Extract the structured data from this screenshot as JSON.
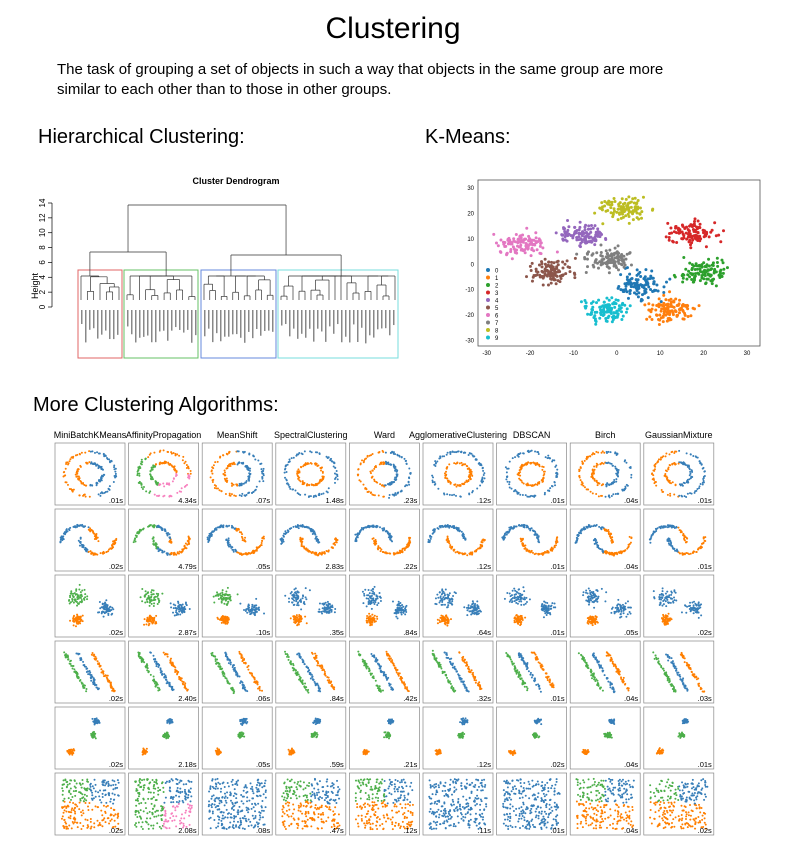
{
  "header": {
    "title": "Clustering",
    "description_lines": [
      "The task of grouping a set of objects in such a way that objects in the same group are more",
      "similar to each other than to those in other groups."
    ]
  },
  "hierarchical": {
    "heading": "Hierarchical Clustering:",
    "plot_title": "Cluster Dendrogram",
    "y_label": "Height",
    "y_ticks": [
      "0",
      "2",
      "4",
      "6",
      "8",
      "10",
      "12",
      "14"
    ]
  },
  "kmeans": {
    "heading": "K-Means:",
    "legend": [
      "0",
      "1",
      "2",
      "3",
      "4",
      "5",
      "6",
      "7",
      "8",
      "9"
    ],
    "x_ticks": [
      "-30",
      "-20",
      "-10",
      "0",
      "10",
      "20",
      "30"
    ],
    "y_ticks": [
      "30",
      "20",
      "10",
      "0",
      "-10",
      "-20",
      "-30"
    ]
  },
  "more": {
    "heading": "More Clustering Algorithms:",
    "algorithms": [
      "MiniBatchKMeans",
      "AffinityPropagation",
      "MeanShift",
      "SpectralClustering",
      "Ward",
      "AgglomerativeClustering",
      "DBSCAN",
      "Birch",
      "GaussianMixture"
    ],
    "timings": [
      [
        ".01s",
        "4.34s",
        ".07s",
        "1.48s",
        ".23s",
        ".12s",
        ".01s",
        ".04s",
        ".01s"
      ],
      [
        ".02s",
        "4.79s",
        ".05s",
        "2.83s",
        ".22s",
        ".12s",
        ".01s",
        ".04s",
        ".01s"
      ],
      [
        ".02s",
        "2.87s",
        ".10s",
        ".35s",
        ".84s",
        ".64s",
        ".01s",
        ".05s",
        ".02s"
      ],
      [
        ".02s",
        "2.40s",
        ".06s",
        ".84s",
        ".42s",
        ".32s",
        ".01s",
        ".04s",
        ".03s"
      ],
      [
        ".02s",
        "2.18s",
        ".05s",
        ".59s",
        ".21s",
        ".12s",
        ".02s",
        ".04s",
        ".01s"
      ],
      [
        ".02s",
        "2.08s",
        ".08s",
        ".47s",
        ".12s",
        ".11s",
        ".01s",
        ".04s",
        ".02s"
      ]
    ]
  }
}
